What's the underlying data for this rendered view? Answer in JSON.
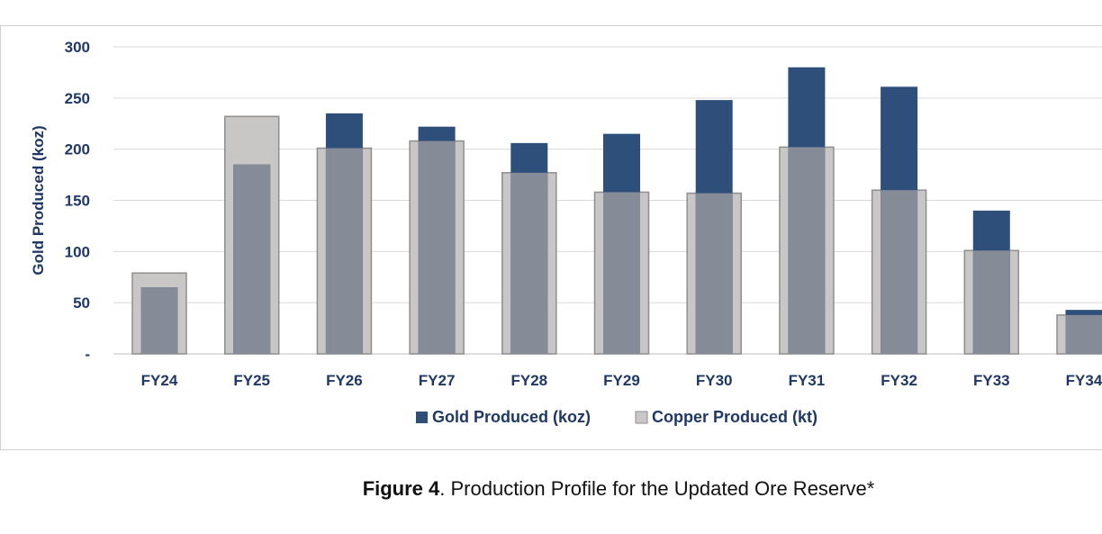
{
  "chart_data": {
    "type": "bar",
    "categories": [
      "FY24",
      "FY25",
      "FY26",
      "FY27",
      "FY28",
      "FY29",
      "FY30",
      "FY31",
      "FY32",
      "FY33",
      "FY34"
    ],
    "series": [
      {
        "name": "Gold Produced (koz)",
        "values": [
          65,
          185,
          235,
          222,
          206,
          215,
          248,
          280,
          261,
          140,
          43
        ],
        "color": "#2e4f7a"
      },
      {
        "name": "Copper Produced (kt)",
        "values": [
          79,
          232,
          201,
          208,
          177,
          158,
          157,
          202,
          160,
          101,
          38
        ],
        "color": "#c9c6c6"
      }
    ],
    "overlap_color": "#858c97",
    "ylabel": "Gold Produced (koz)",
    "ylim": [
      0,
      300
    ],
    "yticks": [
      0,
      50,
      100,
      150,
      200,
      250,
      300
    ],
    "ytick_labels": [
      "-",
      "50",
      "100",
      "150",
      "200",
      "250",
      "300"
    ],
    "grid": true,
    "legend_position": "bottom"
  },
  "caption": {
    "bold": "Figure 4",
    "text": ". Production Profile for the Updated Ore Reserve*"
  }
}
